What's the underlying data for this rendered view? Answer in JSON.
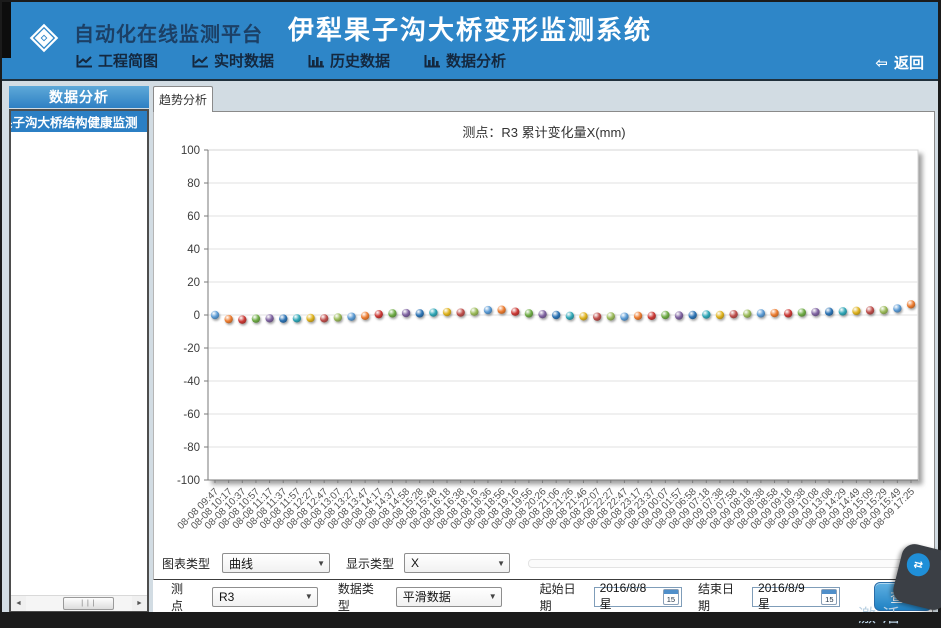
{
  "header": {
    "brand": "自动化在线监测平台",
    "title": "伊犁果子沟大桥变形监测系统",
    "back_label": "返回",
    "nav": [
      {
        "label": "工程简图",
        "icon": "line-chart"
      },
      {
        "label": "实时数据",
        "icon": "line-chart"
      },
      {
        "label": "历史数据",
        "icon": "bar-chart"
      },
      {
        "label": "数据分析",
        "icon": "bar-chart"
      }
    ],
    "colors": {
      "bg": "#2E86C8",
      "brand_text": "#1C4066",
      "title_text": "#FFFFFF"
    }
  },
  "sidebar": {
    "title": "数据分析",
    "items": [
      {
        "label": "果子沟大桥结构健康监测",
        "selected": true
      }
    ]
  },
  "main": {
    "tab_label": "趋势分析",
    "chart_title": "测点：R3 累计变化量X(mm)"
  },
  "chart_data": {
    "type": "scatter",
    "title": "测点：R3 累计变化量X(mm)",
    "ylim": [
      -100,
      100
    ],
    "ytick_step": 20,
    "grid": true,
    "x": [
      "08-08 09:47",
      "08-08 10:17",
      "08-08 10:37",
      "08-08 10:57",
      "08-08 11:17",
      "08-08 11:37",
      "08-08 11:57",
      "08-08 12:27",
      "08-08 12:47",
      "08-08 13:07",
      "08-08 13:27",
      "08-08 13:47",
      "08-08 14:17",
      "08-08 14:37",
      "08-08 14:58",
      "08-08 15:28",
      "08-08 15:48",
      "08-08 16:18",
      "08-08 16:38",
      "08-08 18:16",
      "08-08 18:36",
      "08-08 18:56",
      "08-08 19:16",
      "08-08 19:56",
      "08-08 20:26",
      "08-08 21:06",
      "08-08 21:26",
      "08-08 21:46",
      "08-08 22:07",
      "08-08 22:27",
      "08-08 22:47",
      "08-08 23:17",
      "08-08 23:37",
      "08-09 00:07",
      "08-09 01:57",
      "08-09 06:58",
      "08-09 07:18",
      "08-09 07:38",
      "08-09 07:58",
      "08-09 08:18",
      "08-09 08:38",
      "08-09 08:58",
      "08-09 09:18",
      "08-09 09:38",
      "08-09 10:08",
      "08-09 13:08",
      "08-09 14:29",
      "08-09 14:49",
      "08-09 15:09",
      "08-09 15:29",
      "08-09 15:49",
      "08-09 17:25"
    ],
    "values": [
      0,
      -2.5,
      -2.8,
      -2.2,
      -2,
      -2.2,
      -2,
      -1.8,
      -2,
      -1.5,
      -1,
      -0.5,
      0.5,
      1,
      1.2,
      1,
      1.5,
      1.8,
      1.5,
      2,
      3,
      3.2,
      2,
      1,
      0.5,
      0,
      -0.5,
      -0.8,
      -1,
      -0.8,
      -1,
      -0.5,
      -0.5,
      0,
      -0.3,
      0,
      0.3,
      0,
      0.5,
      0.8,
      1,
      1.2,
      1,
      1.5,
      1.8,
      2,
      2.2,
      2.5,
      2.8,
      3,
      4,
      6.5
    ],
    "point_palette": [
      "#5b9bd5",
      "#ed7d31",
      "#cc3a36",
      "#70ad47",
      "#8064a2",
      "#2e75b6",
      "#31a8b8",
      "#e0b420",
      "#c0504d",
      "#9bbb59"
    ]
  },
  "controls": {
    "row1": {
      "chart_type_label": "图表类型",
      "chart_type_value": "曲线",
      "display_type_label": "显示类型",
      "display_type_value": "X"
    },
    "row2": {
      "point_label": "测点",
      "point_value": "R3",
      "data_type_label": "数据类型",
      "data_type_value": "平滑数据",
      "start_date_label": "起始日期",
      "start_date_value": "2016/8/8 星",
      "end_date_label": "结束日期",
      "end_date_value": "2016/8/9 星",
      "calendar_day": "15",
      "query_label": "查询"
    }
  },
  "icons": {
    "back_arrow": "⇦",
    "select_arrow": "▼",
    "scroll_left": "◄",
    "scroll_right": "►",
    "grip": "| | |",
    "tv_arrows": "⇄"
  },
  "overlay": {
    "watermark": "激活"
  }
}
